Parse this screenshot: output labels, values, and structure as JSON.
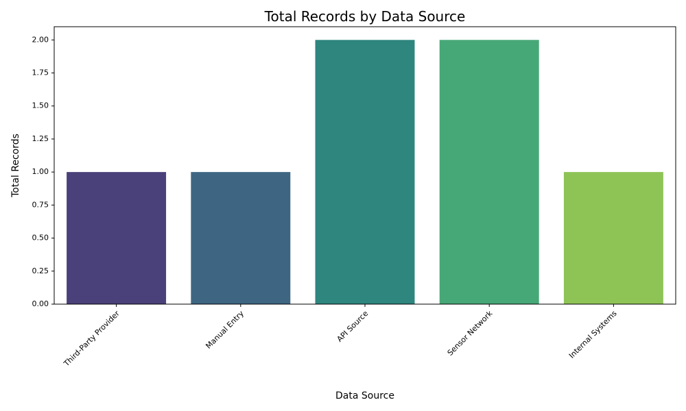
{
  "chart_data": {
    "type": "bar",
    "title": "Total Records by Data Source",
    "xlabel": "Data Source",
    "ylabel": "Total Records",
    "categories": [
      "Third-Party Provider",
      "Manual Entry",
      "API Source",
      "Sensor Network",
      "Internal Systems"
    ],
    "values": [
      1,
      1,
      2,
      2,
      1
    ],
    "colors": [
      "#4a417a",
      "#3e6683",
      "#2e867e",
      "#46a877",
      "#8ec456"
    ],
    "ylim": [
      0,
      2.1
    ],
    "yticks": [
      "0.00",
      "0.25",
      "0.50",
      "0.75",
      "1.00",
      "1.25",
      "1.50",
      "1.75",
      "2.00"
    ],
    "grid": false,
    "legend": "none"
  }
}
